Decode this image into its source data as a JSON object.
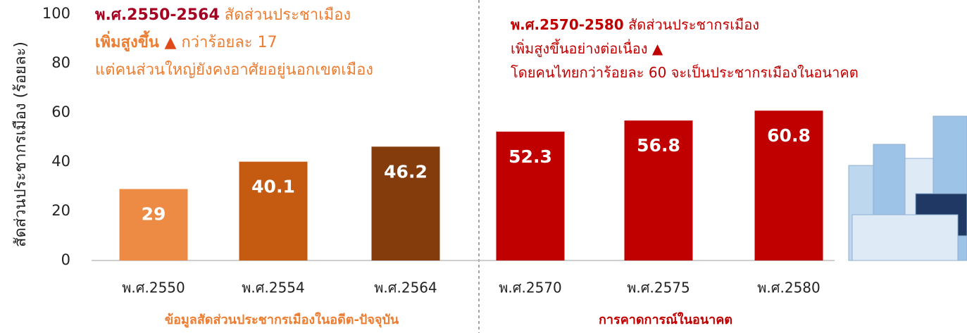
{
  "chart_data": {
    "type": "bar",
    "y_label": "สัดส่วนประชากรเมือง (ร้อยละ)",
    "categories": [
      "พ.ศ.2550",
      "พ.ศ.2554",
      "พ.ศ.2564",
      "พ.ศ.2570",
      "พ.ศ.2575",
      "พ.ศ.2580"
    ],
    "values": [
      29,
      40.1,
      46.2,
      52.3,
      56.8,
      60.8
    ],
    "colors": [
      "#ED8B45",
      "#C55A11",
      "#843C0C",
      "#C00000",
      "#C00000",
      "#C00000"
    ],
    "ylim": [
      0,
      100
    ],
    "yticks": [
      0,
      20,
      40,
      60,
      80,
      100
    ],
    "annotations": [
      {
        "lines": [
          [
            {
              "text": "พ.ศ.2550-2564",
              "bold": true,
              "color": "#A50021"
            },
            {
              "text": " สัดส่วนประชาเมือง",
              "bold": false,
              "color": "#ED7D31"
            }
          ],
          [
            {
              "text": "เพิ่มสูงขึ้น ",
              "bold": true,
              "color": "#ED7D31"
            },
            {
              "text": "▲",
              "bold": false,
              "color": "#E04A1A"
            },
            {
              "text": " กว่าร้อยละ 17",
              "bold": false,
              "color": "#ED7D31"
            }
          ],
          [
            {
              "text": "แต่คนส่วนใหญ่ยังคงอาศัยอยู่นอกเขตเมือง",
              "bold": false,
              "color": "#ED7D31"
            }
          ]
        ]
      },
      {
        "lines": [
          [
            {
              "text": "พ.ศ.2570-2580",
              "bold": true,
              "color": "#C00000"
            },
            {
              "text": " สัดส่วนประชากรเมือง",
              "bold": false,
              "color": "#C00000"
            }
          ],
          [
            {
              "text": "เพิ่มสูงขึ้นอย่างต่อเนื่อง ▲",
              "bold": false,
              "color": "#C00000"
            }
          ],
          [
            {
              "text": "โดยคนไทยกว่าร้อยละ 60 จะเป็นประชากรเมืองในอนาคต",
              "bold": false,
              "color": "#C00000"
            }
          ]
        ]
      }
    ],
    "group_labels": [
      {
        "text": "ข้อมูลสัดส่วนประชากรเมืองในอดีต-ปัจจุบัน",
        "color": "#ED7D31"
      },
      {
        "text": "การคาดการณ์ในอนาคต",
        "color": "#C00000"
      }
    ]
  }
}
